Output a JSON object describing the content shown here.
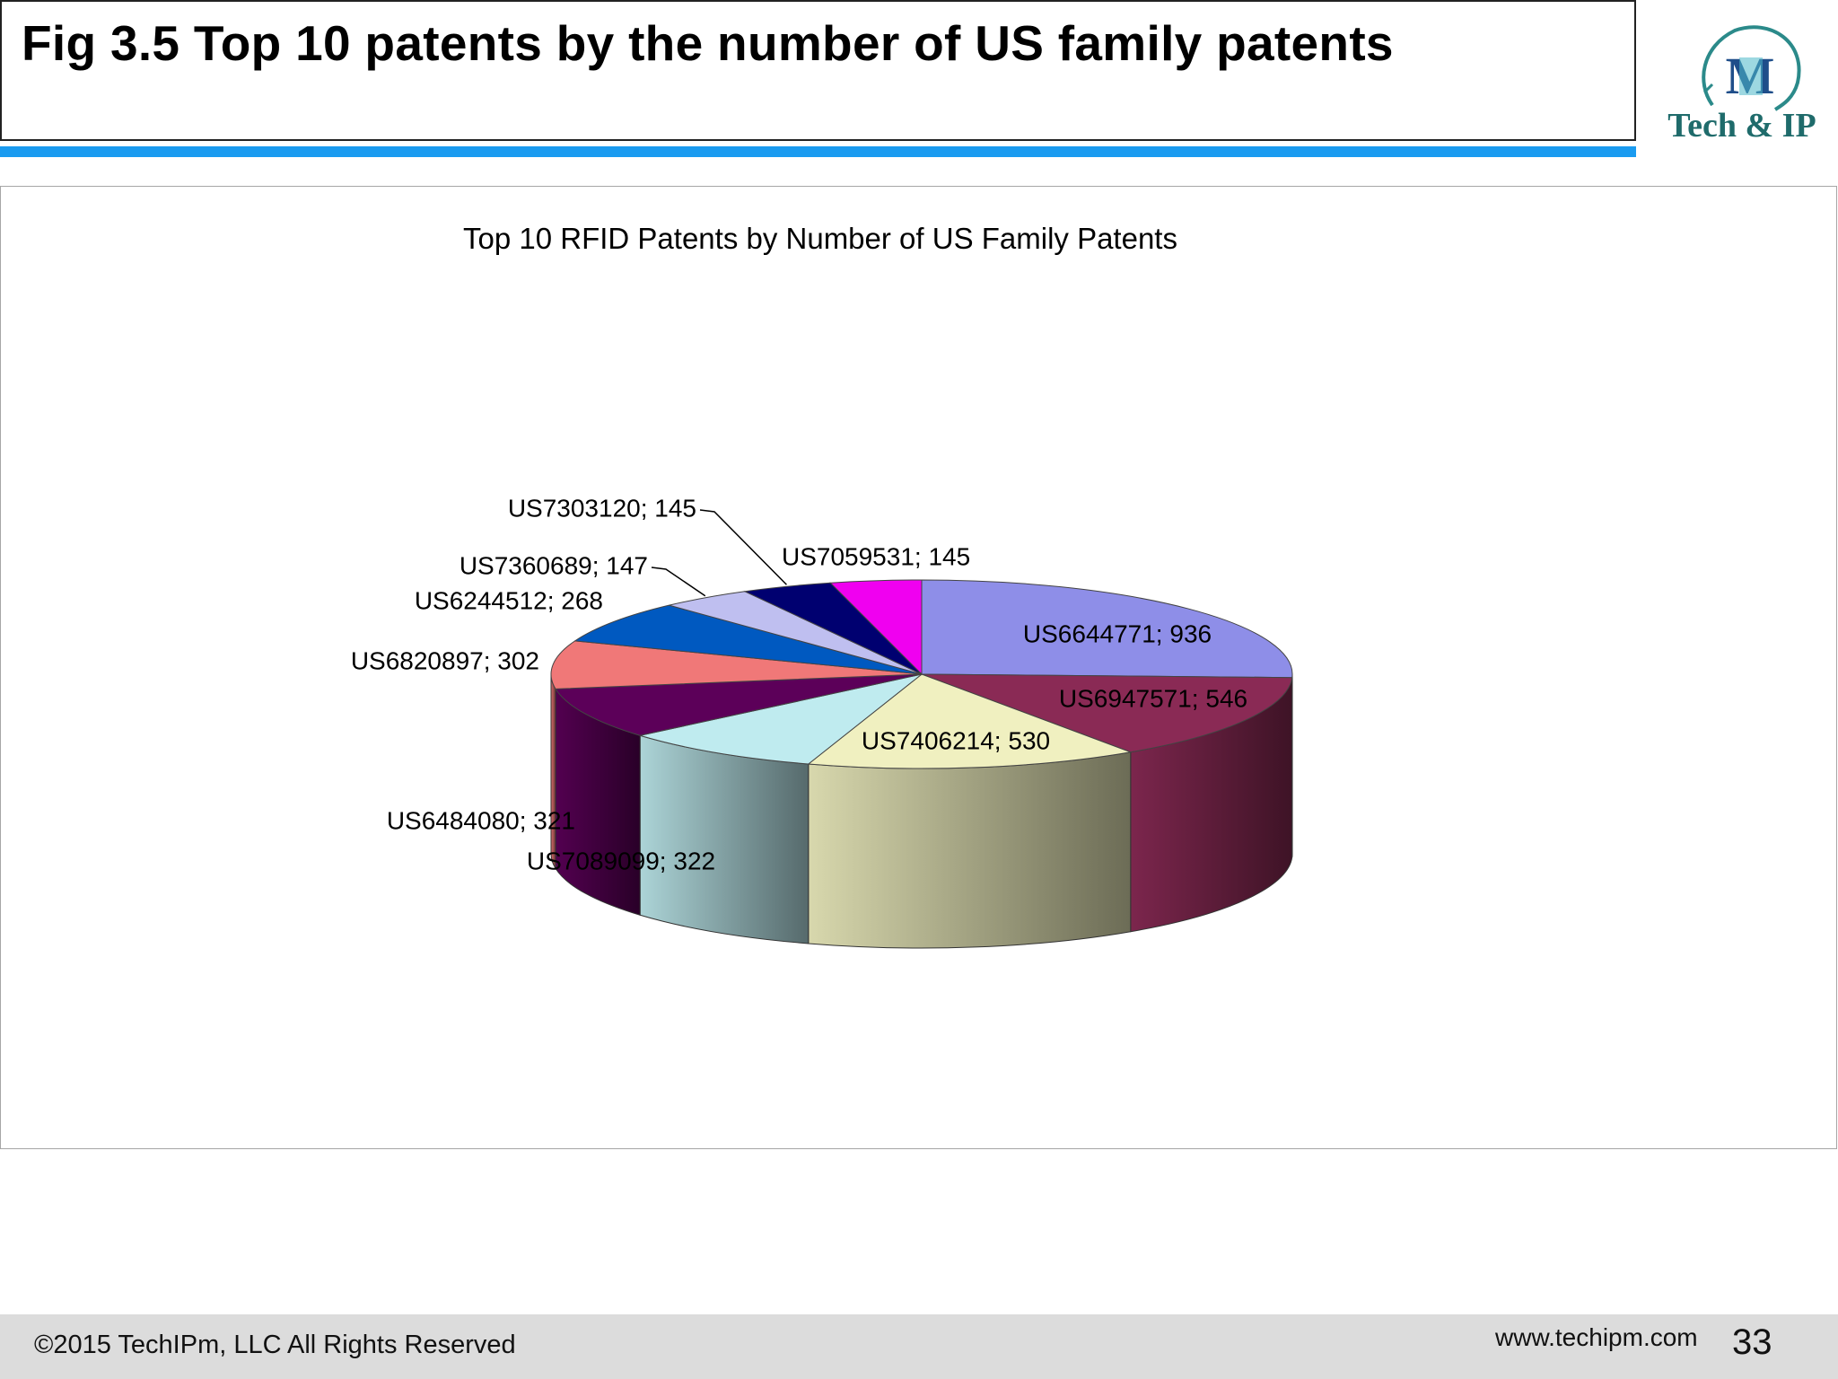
{
  "slide": {
    "title": "Fig 3.5 Top 10 patents by the number of US family patents",
    "logo_text": "Tech & IP",
    "footer_copyright": "©2015 TechIPm, LLC All Rights Reserved",
    "footer_url": "www.techipm.com",
    "page_number": "33"
  },
  "chart_data": {
    "type": "pie",
    "title": "Top 10 RFID Patents by Number of US Family Patents",
    "label_format": "{name}; {value}",
    "categories": [
      "US6644771",
      "US6947571",
      "US7406214",
      "US7089099",
      "US6484080",
      "US6820897",
      "US6244512",
      "US7360689",
      "US7303120",
      "US7059531"
    ],
    "values": [
      936,
      546,
      530,
      322,
      321,
      302,
      268,
      147,
      145,
      145
    ],
    "colors": [
      "#8e8ee8",
      "#8a2a55",
      "#f0f0c0",
      "#bfebef",
      "#5c0059",
      "#f07878",
      "#0059c0",
      "#bfbff0",
      "#000070",
      "#f000f0"
    ],
    "style": "3d"
  }
}
